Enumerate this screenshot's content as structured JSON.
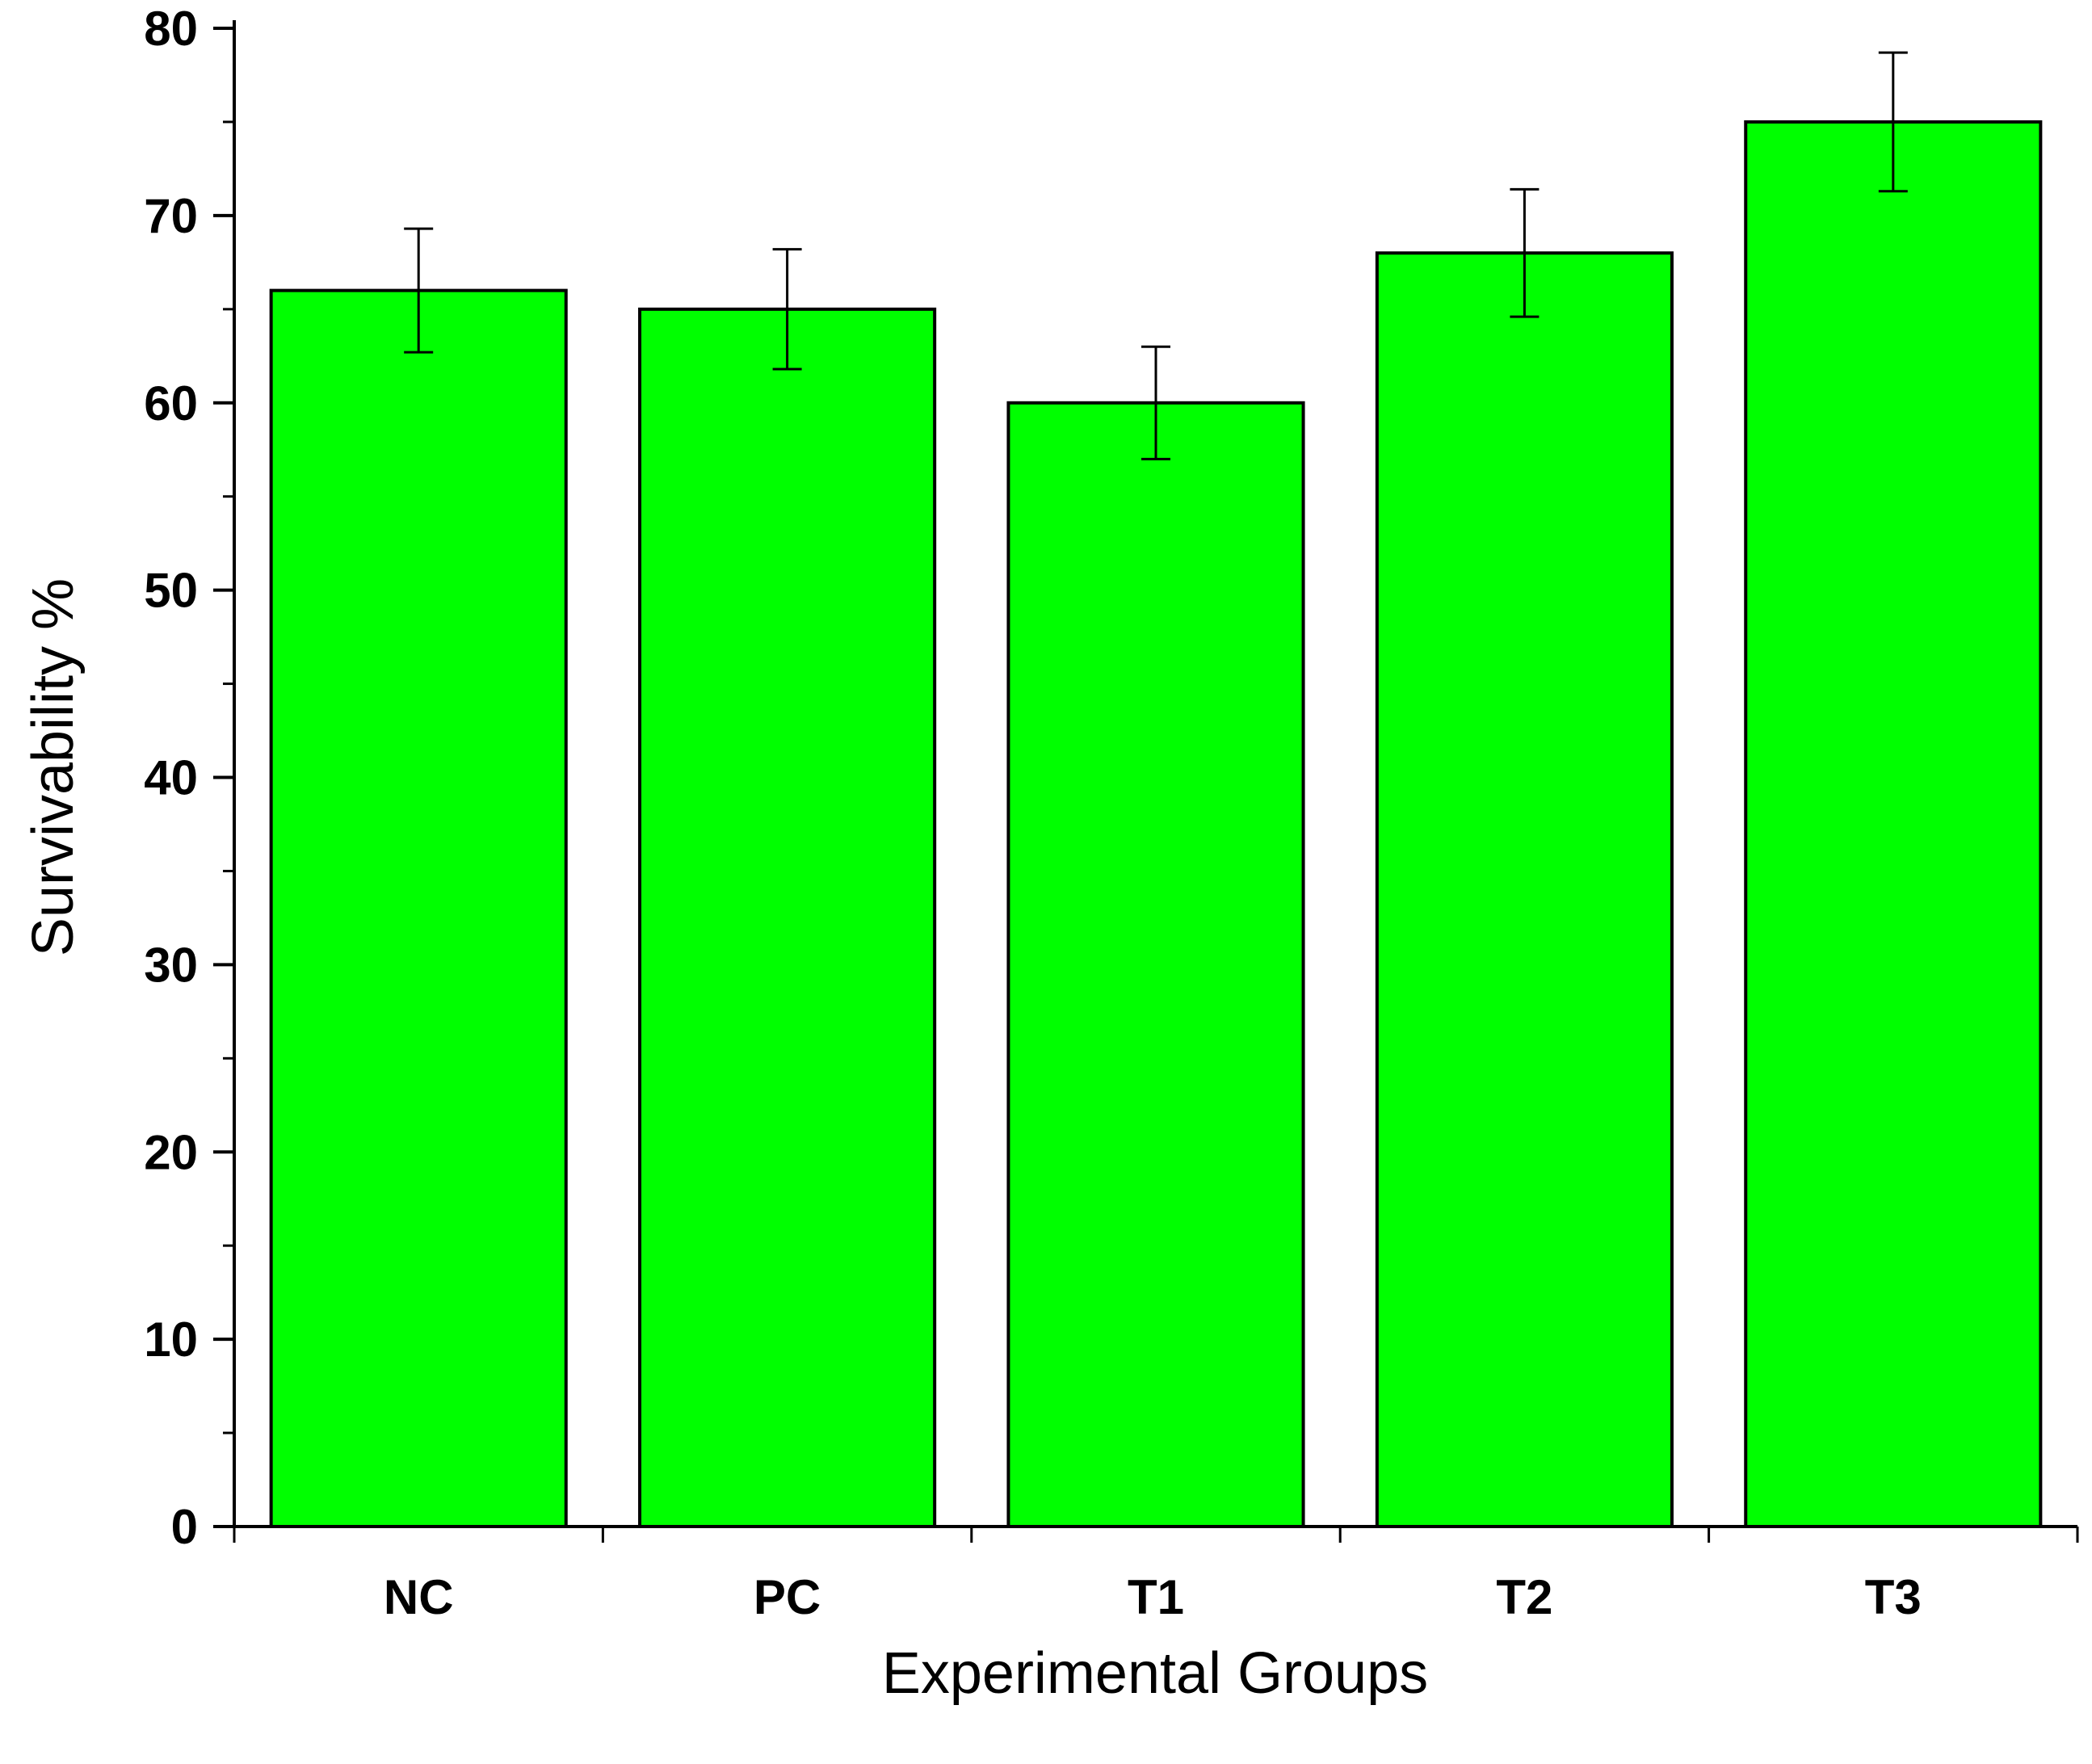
{
  "chart_data": {
    "type": "bar",
    "categories": [
      "NC",
      "PC",
      "T1",
      "T2",
      "T3"
    ],
    "series": [
      {
        "values": [
          66,
          65,
          60,
          68,
          75
        ],
        "error": [
          3.3,
          3.2,
          3.0,
          3.4,
          3.7
        ]
      }
    ],
    "title": "",
    "xlabel": "Experimental Groups",
    "ylabel": "Survivability %",
    "ylim": [
      0,
      80
    ],
    "yticks": [
      0,
      10,
      20,
      30,
      40,
      50,
      60,
      70,
      80
    ],
    "grid": false,
    "legend": "none",
    "colors": {
      "bar_fill": "#00FF00",
      "bar_stroke": "#000000",
      "axis": "#000000",
      "error_bar": "#000000"
    }
  }
}
